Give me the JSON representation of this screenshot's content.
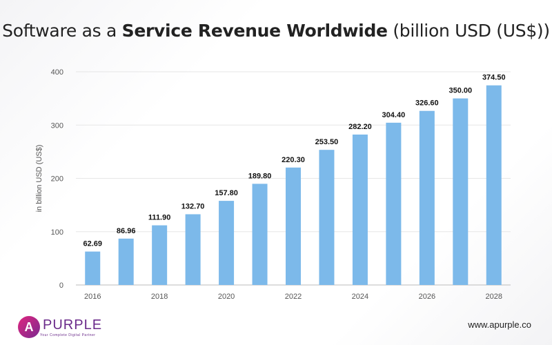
{
  "title": {
    "prefix": "Software as a ",
    "bold": "Service Revenue Worldwide",
    "suffix": " (billion USD (US$))"
  },
  "logo": {
    "name": "PURPLE",
    "tagline": "Your Complete Digital Partner"
  },
  "footer_url": "www.apurple.co",
  "chart_data": {
    "type": "bar",
    "title": "Software as a Service Revenue Worldwide (billion USD (US$))",
    "ylabel": "in billion USD (US$)",
    "xlabel": "",
    "categories": [
      "2016",
      "2017",
      "2018",
      "2019",
      "2020",
      "2021",
      "2022",
      "2023",
      "2024",
      "2025",
      "2026",
      "2027",
      "2028"
    ],
    "values": [
      62.69,
      86.96,
      111.9,
      132.7,
      157.8,
      189.8,
      220.3,
      253.5,
      282.2,
      304.4,
      326.6,
      350.0,
      374.5
    ],
    "data_labels": [
      "62.69",
      "86.96",
      "111.90",
      "132.70",
      "157.80",
      "189.80",
      "220.30",
      "253.50",
      "282.20",
      "304.40",
      "326.60",
      "350.00",
      "374.50"
    ],
    "x_tick_labels": [
      "2016",
      "2018",
      "2020",
      "2022",
      "2024",
      "2026",
      "2028"
    ],
    "y_ticks": [
      0,
      100,
      200,
      300,
      400
    ],
    "ylim": [
      0,
      400
    ],
    "grid": true,
    "bar_color": "#7cb9ea"
  }
}
